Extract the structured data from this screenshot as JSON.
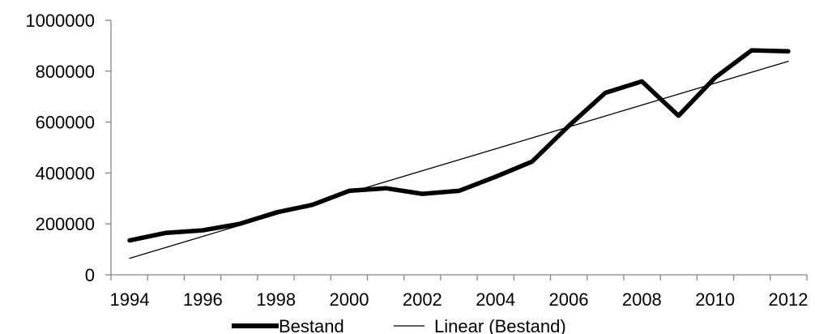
{
  "chart_data": {
    "type": "line",
    "x": [
      1994,
      1995,
      1996,
      1997,
      1998,
      1999,
      2000,
      2001,
      2002,
      2003,
      2004,
      2005,
      2006,
      2007,
      2008,
      2009,
      2010,
      2011,
      2012
    ],
    "series": [
      {
        "name": "Bestand",
        "values": [
          135000,
          165000,
          175000,
          200000,
          245000,
          275000,
          330000,
          340000,
          318000,
          330000,
          385000,
          445000,
          585000,
          715000,
          760000,
          625000,
          775000,
          882000,
          878000
        ],
        "color": "#000000",
        "style": "thick"
      },
      {
        "name": "Linear (Bestand)",
        "values": [
          65000,
          108000,
          151000,
          194000,
          237000,
          280000,
          323000,
          366000,
          409000,
          452000,
          495000,
          538000,
          581000,
          624000,
          667000,
          710000,
          753000,
          796000,
          839000
        ],
        "color": "#000000",
        "style": "thin"
      }
    ],
    "xticks": [
      "1994",
      "1996",
      "1998",
      "2000",
      "2002",
      "2004",
      "2006",
      "2008",
      "2010",
      "2012"
    ],
    "yticks": [
      "0",
      "200000",
      "400000",
      "600000",
      "800000",
      "1000000"
    ],
    "ylim": [
      0,
      1000000
    ],
    "grid": false,
    "legend_position": "bottom"
  }
}
